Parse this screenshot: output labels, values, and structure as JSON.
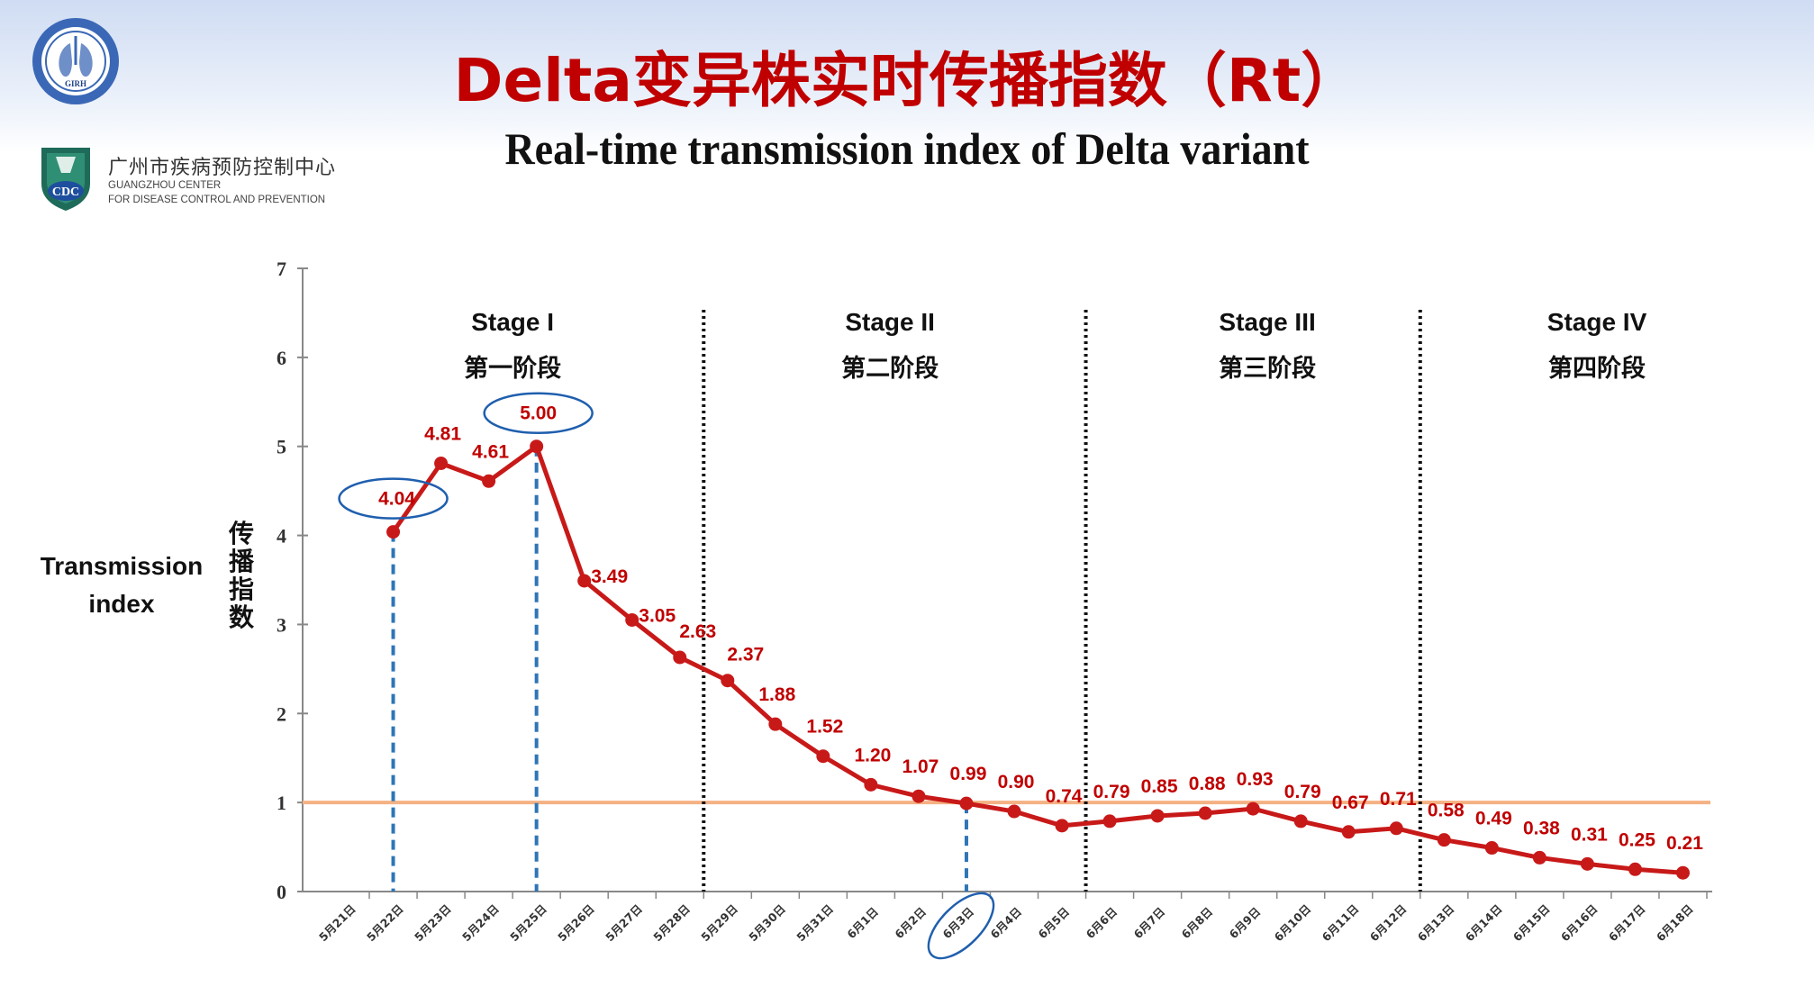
{
  "header": {
    "title_cn": "Delta变异株实时传播指数（Rt）",
    "title_en": "Real-time transmission index of Delta variant",
    "side_label_line1": "Transmission",
    "side_label_line2": "index"
  },
  "logos": {
    "girh_abbrev": "GIRH",
    "cdc_abbrev": "CDC",
    "cdc_name_cn": "广州市疾病预防控制中心",
    "cdc_name_en_line1": "GUANGZHOU CENTER",
    "cdc_name_en_line2": "FOR DISEASE CONTROL AND PREVENTION"
  },
  "colors": {
    "title_red": "#c00000",
    "series_red": "#c81919",
    "threshold_orange": "#f4b183",
    "marker_blue": "#2e75b6",
    "ellipse_blue": "#1f5fae"
  },
  "chart_data": {
    "type": "line",
    "title": "Real-time transmission index of Delta variant",
    "xlabel": "",
    "ylabel": "传播指数",
    "ylim": [
      0,
      7
    ],
    "yticks": [
      "0",
      "1",
      "2",
      "3",
      "4",
      "5",
      "6",
      "7"
    ],
    "threshold": 1,
    "categories": [
      "5月21日",
      "5月22日",
      "5月23日",
      "5月24日",
      "5月25日",
      "5月26日",
      "5月27日",
      "5月28日",
      "5月29日",
      "5月30日",
      "5月31日",
      "6月1日",
      "6月2日",
      "6月3日",
      "6月4日",
      "6月5日",
      "6月6日",
      "6月7日",
      "6月8日",
      "6月9日",
      "6月10日",
      "6月11日",
      "6月12日",
      "6月13日",
      "6月14日",
      "6月15日",
      "6月16日",
      "6月17日",
      "6月18日"
    ],
    "series": [
      {
        "name": "Rt",
        "values": [
          null,
          4.04,
          4.81,
          4.61,
          5.0,
          3.49,
          3.05,
          2.63,
          2.37,
          1.88,
          1.52,
          1.2,
          1.07,
          0.99,
          0.9,
          0.74,
          0.79,
          0.85,
          0.88,
          0.93,
          0.79,
          0.67,
          0.71,
          0.58,
          0.49,
          0.38,
          0.31,
          0.25,
          0.21
        ],
        "labels": [
          "",
          "4.04",
          "4.81",
          "4.61",
          "5.00",
          "3.49",
          "3.05",
          "2.63",
          "2.37",
          "1.88",
          "1.52",
          "1.20",
          "1.07",
          "0.99",
          "0.90",
          "0.74",
          "0.79",
          "0.85",
          "0.88",
          "0.93",
          "0.79",
          "0.67",
          "0.71",
          "0.58",
          "0.49",
          "0.38",
          "0.31",
          "0.25",
          "0.21"
        ]
      }
    ],
    "stage_boundaries": [
      7.5,
      15.5,
      22.5
    ],
    "stages": [
      {
        "en": "Stage I",
        "cn": "第一阶段",
        "center": 3.5
      },
      {
        "en": "Stage II",
        "cn": "第二阶段",
        "center": 11.4
      },
      {
        "en": "Stage III",
        "cn": "第三阶段",
        "center": 19.3
      },
      {
        "en": "Stage IV",
        "cn": "第四阶段",
        "center": 26.2
      }
    ],
    "highlighted_points": [
      1,
      4,
      13
    ]
  }
}
